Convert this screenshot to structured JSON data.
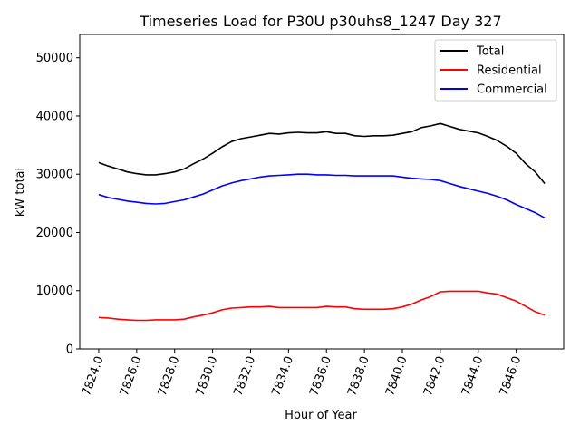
{
  "chart_data": {
    "type": "line",
    "title": "Timeseries Load for P30U p30uhs8_1247  Day 327",
    "xlabel": "Hour of Year",
    "ylabel": "kW total",
    "xlim": [
      7823.0,
      7848.5
    ],
    "ylim": [
      0,
      54000
    ],
    "x_ticks": [
      7824.0,
      7826.0,
      7828.0,
      7830.0,
      7832.0,
      7834.0,
      7836.0,
      7838.0,
      7840.0,
      7842.0,
      7844.0,
      7846.0
    ],
    "x_tick_labels": [
      "7824.0",
      "7826.0",
      "7828.0",
      "7830.0",
      "7832.0",
      "7834.0",
      "7836.0",
      "7838.0",
      "7840.0",
      "7842.0",
      "7844.0",
      "7846.0"
    ],
    "y_ticks": [
      0,
      10000,
      20000,
      30000,
      40000,
      50000
    ],
    "y_tick_labels": [
      "0",
      "10000",
      "20000",
      "30000",
      "40000",
      "50000"
    ],
    "legend_position": "top-right",
    "x": [
      7824.0,
      7824.5,
      7825.0,
      7825.5,
      7826.0,
      7826.5,
      7827.0,
      7827.5,
      7828.0,
      7828.5,
      7829.0,
      7829.5,
      7830.0,
      7830.5,
      7831.0,
      7831.5,
      7832.0,
      7832.5,
      7833.0,
      7833.5,
      7834.0,
      7834.5,
      7835.0,
      7835.5,
      7836.0,
      7836.5,
      7837.0,
      7837.5,
      7838.0,
      7838.5,
      7839.0,
      7839.5,
      7840.0,
      7840.5,
      7841.0,
      7841.5,
      7842.0,
      7842.5,
      7843.0,
      7843.5,
      7844.0,
      7844.5,
      7845.0,
      7845.5,
      7846.0,
      7846.5,
      7847.0,
      7847.5
    ],
    "series": [
      {
        "name": "Total",
        "color": "#000000",
        "values": [
          32000,
          31400,
          30900,
          30400,
          30100,
          29900,
          29900,
          30100,
          30400,
          30900,
          31800,
          32600,
          33600,
          34700,
          35600,
          36100,
          36400,
          36700,
          37000,
          36900,
          37100,
          37200,
          37100,
          37100,
          37300,
          37000,
          37000,
          36600,
          36500,
          36600,
          36600,
          36700,
          37000,
          37300,
          38000,
          38300,
          38700,
          38200,
          37700,
          37400,
          37100,
          36500,
          35800,
          34800,
          33600,
          31800,
          30400,
          28400
        ]
      },
      {
        "name": "Residential",
        "color": "#ff0000",
        "values": [
          5400,
          5300,
          5100,
          5000,
          4900,
          4900,
          5000,
          5000,
          5000,
          5100,
          5500,
          5800,
          6200,
          6700,
          7000,
          7100,
          7200,
          7200,
          7300,
          7100,
          7100,
          7100,
          7100,
          7100,
          7300,
          7200,
          7200,
          6900,
          6800,
          6800,
          6800,
          6900,
          7200,
          7700,
          8400,
          9000,
          9800,
          9900,
          9900,
          9900,
          9900,
          9600,
          9400,
          8800,
          8200,
          7300,
          6400,
          5800
        ]
      },
      {
        "name": "Commercial",
        "color": "#0000ff",
        "values": [
          26500,
          26000,
          25700,
          25400,
          25200,
          25000,
          24900,
          25000,
          25300,
          25600,
          26100,
          26600,
          27300,
          28000,
          28500,
          28900,
          29200,
          29500,
          29700,
          29800,
          29900,
          30000,
          30000,
          29900,
          29900,
          29800,
          29800,
          29700,
          29700,
          29700,
          29700,
          29700,
          29500,
          29300,
          29200,
          29100,
          28900,
          28400,
          27900,
          27500,
          27100,
          26700,
          26200,
          25600,
          24800,
          24100,
          23400,
          22500
        ]
      }
    ]
  }
}
